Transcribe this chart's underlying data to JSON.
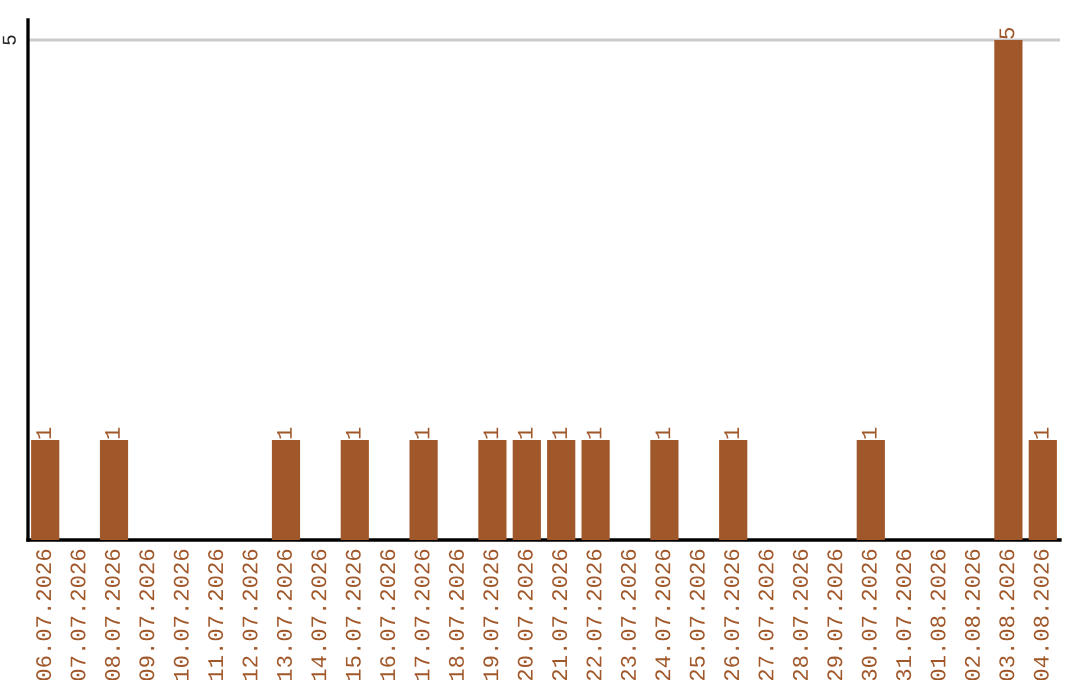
{
  "chart_data": {
    "type": "bar",
    "categories": [
      "06.07.2026",
      "07.07.2026",
      "08.07.2026",
      "09.07.2026",
      "10.07.2026",
      "11.07.2026",
      "12.07.2026",
      "13.07.2026",
      "14.07.2026",
      "15.07.2026",
      "16.07.2026",
      "17.07.2026",
      "18.07.2026",
      "19.07.2026",
      "20.07.2026",
      "21.07.2026",
      "22.07.2026",
      "23.07.2026",
      "24.07.2026",
      "25.07.2026",
      "26.07.2026",
      "27.07.2026",
      "28.07.2026",
      "29.07.2026",
      "30.07.2026",
      "31.07.2026",
      "01.08.2026",
      "02.08.2026",
      "03.08.2026",
      "04.08.2026"
    ],
    "values": [
      1,
      null,
      1,
      null,
      null,
      null,
      null,
      1,
      null,
      1,
      null,
      1,
      null,
      1,
      1,
      1,
      1,
      null,
      1,
      null,
      1,
      null,
      null,
      null,
      1,
      null,
      null,
      null,
      5,
      1
    ],
    "value_labels": [
      "1",
      null,
      "1",
      null,
      null,
      null,
      null,
      "1",
      null,
      "1",
      null,
      "1",
      null,
      "1",
      "1",
      "1",
      "1",
      null,
      "1",
      null,
      "1",
      null,
      null,
      null,
      "1",
      null,
      null,
      null,
      "5",
      "1"
    ],
    "color": "#a0582a",
    "ylim": [
      0,
      5.2
    ],
    "yticks": [
      5
    ],
    "grid": "y",
    "legend": false
  }
}
